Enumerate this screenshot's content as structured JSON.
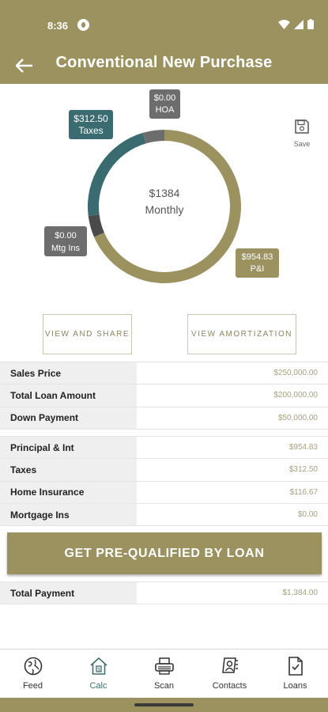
{
  "status": {
    "time": "8:36"
  },
  "header": {
    "title": "Conventional New Purchase"
  },
  "chart_data": {
    "type": "pie",
    "style": "donut",
    "center_value": "$1384",
    "center_label": "Monthly",
    "slices": [
      {
        "name": "P&I",
        "display": "$954.83",
        "value": 954.83,
        "color": "#9b9260"
      },
      {
        "name": "Mtg Ins",
        "display": "$0.00",
        "value": 0.0,
        "color": "#4a4a4a"
      },
      {
        "name": "Taxes",
        "display": "$312.50",
        "value": 312.5,
        "color": "#3a6b70"
      },
      {
        "name": "HOA",
        "display": "$0.00",
        "value": 0.0,
        "color": "#6d6d6d"
      }
    ]
  },
  "save": {
    "label": "Save"
  },
  "buttons": {
    "share": "VIEW AND SHARE",
    "amortization": "VIEW AMORTIZATION",
    "prequalify": "GET PRE-QUALIFIED BY LOAN"
  },
  "loan_table": [
    {
      "label": "Sales Price",
      "value": "$250,000.00"
    },
    {
      "label": "Total Loan Amount",
      "value": "$200,000.00"
    },
    {
      "label": "Down Payment",
      "value": "$50,000.00"
    }
  ],
  "payment_table": [
    {
      "label": "Principal & Int",
      "value": "$954.83"
    },
    {
      "label": "Taxes",
      "value": "$312.50"
    },
    {
      "label": "Home Insurance",
      "value": "$116.67"
    },
    {
      "label": "Mortgage Ins",
      "value": "$0.00"
    }
  ],
  "total": {
    "label": "Total Payment",
    "value": "$1,384.00"
  },
  "nav": [
    {
      "label": "Feed",
      "icon": "globe-icon"
    },
    {
      "label": "Calc",
      "icon": "house-calc-icon"
    },
    {
      "label": "Scan",
      "icon": "scanner-icon"
    },
    {
      "label": "Contacts",
      "icon": "contacts-icon"
    },
    {
      "label": "Loans",
      "icon": "document-icon"
    }
  ]
}
